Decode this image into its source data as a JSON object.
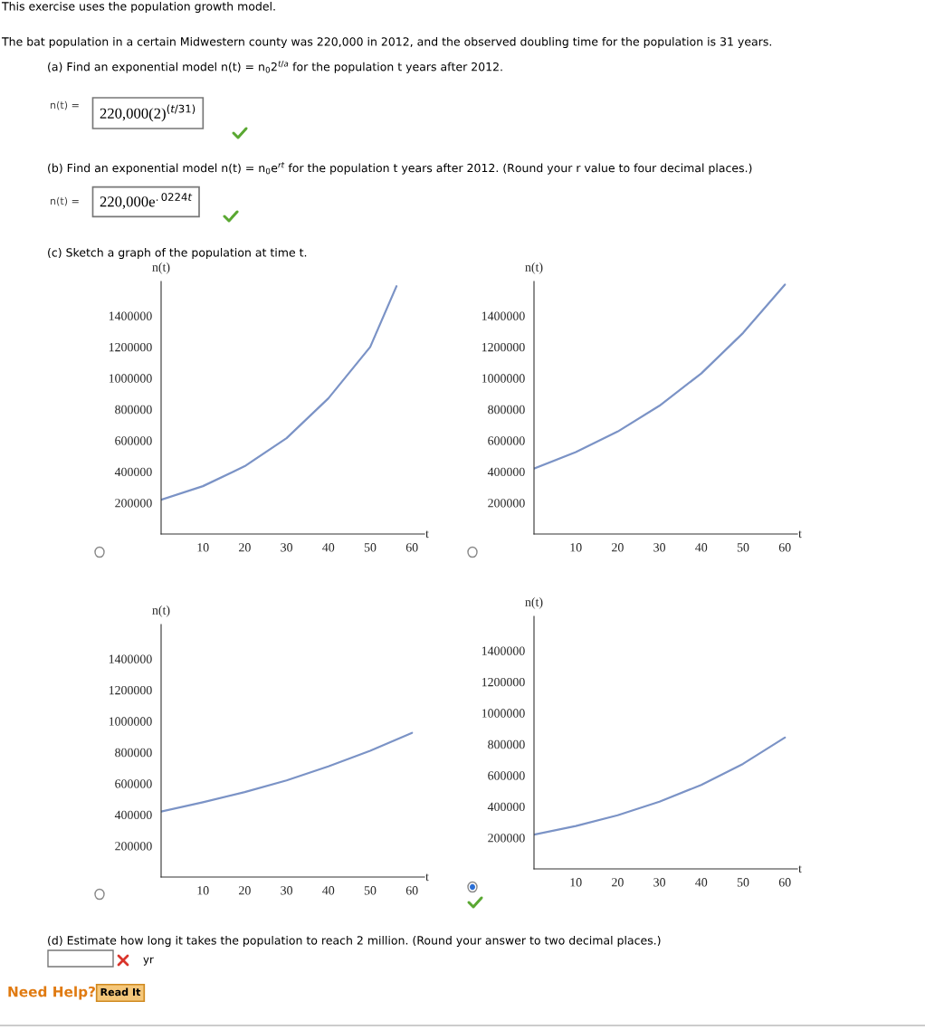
{
  "chart_data": [
    {
      "type": "line",
      "xlabel": "t",
      "ylabel": "n(t)",
      "x": [
        0,
        10,
        20,
        30,
        40,
        50,
        56.3
      ],
      "xlim": [
        0,
        63
      ],
      "ylim": [
        0,
        1620000
      ],
      "xticks": [
        10,
        20,
        30,
        40,
        50,
        60
      ],
      "yticks": [
        200000,
        400000,
        600000,
        800000,
        1000000,
        1200000,
        1400000
      ],
      "series": [
        {
          "color": "#7b93c6",
          "values": [
            220000,
            307000,
            435000,
            615000,
            870000,
            1200000,
            1590000
          ]
        }
      ],
      "annotations": [
        "This exercise uses the population growth model.",
        "The bat population in a certain Midwestern county was 220,000 in 2012, and the observed doubling time for the population is 31 years.",
        "(a) Find an exponential model n(t) = n$_{0}$2$^{t/a}$ for the population t years after 2012.",
        "n(t) =",
        "220,000(2)$^{(t/31)}$",
        "(b) Find an exponential model n(t) = n$_{0}$e$^{rt}$ for the population t years after 2012. (Round your r value to four decimal places.)",
        "n(t) =",
        "220,000e$^{.0224t}$",
        "(c) Sketch a graph of the population at time t.",
        "(d) Estimate how long it takes the population to reach 2 million. (Round your answer to two decimal places.)",
        "yr",
        "Need Help?",
        "Read It"
      ]
    },
    {
      "type": "line",
      "xlabel": "t",
      "ylabel": "n(t)",
      "x": [
        0,
        10,
        20,
        30,
        40,
        50,
        60
      ],
      "xlim": [
        0,
        63
      ],
      "ylim": [
        0,
        1620000
      ],
      "xticks": [
        10,
        20,
        30,
        40,
        50,
        60
      ],
      "yticks": [
        200000,
        400000,
        600000,
        800000,
        1000000,
        1200000,
        1400000
      ],
      "series": [
        {
          "color": "#7b93c6",
          "values": [
            420000,
            525000,
            657000,
            823000,
            1030000,
            1290000,
            1600000
          ]
        }
      ]
    },
    {
      "type": "line",
      "xlabel": "t",
      "ylabel": "n(t)",
      "x": [
        0,
        10,
        20,
        30,
        40,
        50,
        60
      ],
      "xlim": [
        0,
        63
      ],
      "ylim": [
        0,
        1620000
      ],
      "xticks": [
        10,
        20,
        30,
        40,
        50,
        60
      ],
      "yticks": [
        200000,
        400000,
        600000,
        800000,
        1000000,
        1200000,
        1400000
      ],
      "series": [
        {
          "color": "#7b93c6",
          "values": [
            420000,
            480000,
            545000,
            620000,
            710000,
            810000,
            925000
          ]
        }
      ]
    },
    {
      "type": "line",
      "xlabel": "t",
      "ylabel": "n(t)",
      "x": [
        0,
        10,
        20,
        30,
        40,
        50,
        60
      ],
      "xlim": [
        0,
        63
      ],
      "ylim": [
        0,
        1620000
      ],
      "xticks": [
        10,
        20,
        30,
        40,
        50,
        60
      ],
      "yticks": [
        200000,
        400000,
        600000,
        800000,
        1000000,
        1200000,
        1400000
      ],
      "series": [
        {
          "color": "#7b93c6",
          "values": [
            220000,
            275000,
            344000,
            431000,
            539000,
            674000,
            843000
          ]
        }
      ]
    }
  ]
}
